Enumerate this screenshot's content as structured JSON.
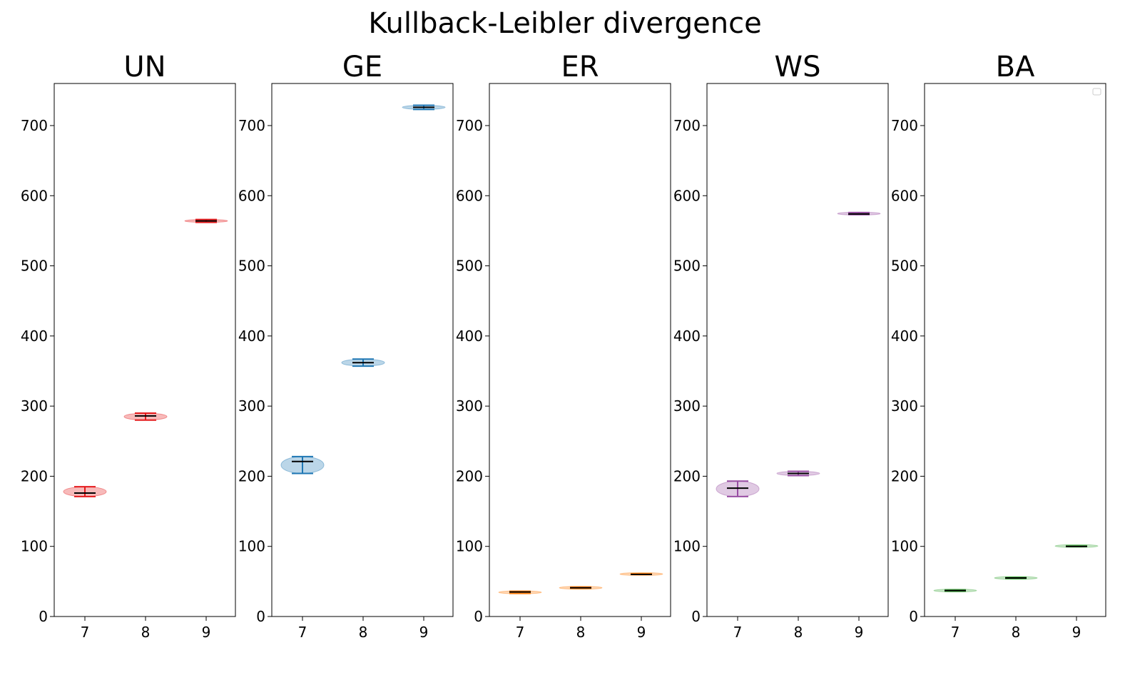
{
  "suptitle": "Kullback-Leibler divergence",
  "chart_data": {
    "type": "violin",
    "ylim": [
      0,
      760
    ],
    "yticks": [
      0,
      100,
      200,
      300,
      400,
      500,
      600,
      700
    ],
    "categories": [
      "7",
      "8",
      "9"
    ],
    "legend": {
      "placement": "upper right",
      "entries": []
    },
    "grid": false,
    "panels": [
      {
        "title": "UN",
        "color": "#e41a1c",
        "violins": [
          {
            "x": "7",
            "min": 171,
            "max": 185,
            "median": 176,
            "spread": 30
          },
          {
            "x": "8",
            "min": 280,
            "max": 290,
            "median": 286,
            "spread": 30
          },
          {
            "x": "9",
            "min": 562,
            "max": 566,
            "median": 564,
            "spread": 30
          }
        ]
      },
      {
        "title": "GE",
        "color": "#1f77b4",
        "violins": [
          {
            "x": "7",
            "min": 204,
            "max": 228,
            "median": 221,
            "spread": 30
          },
          {
            "x": "8",
            "min": 357,
            "max": 367,
            "median": 362,
            "spread": 30
          },
          {
            "x": "9",
            "min": 723,
            "max": 729,
            "median": 726,
            "spread": 30
          }
        ]
      },
      {
        "title": "ER",
        "color": "#ff7f0e",
        "violins": [
          {
            "x": "7",
            "min": 33,
            "max": 36,
            "median": 35,
            "spread": 30
          },
          {
            "x": "8",
            "min": 40,
            "max": 42,
            "median": 41,
            "spread": 30
          },
          {
            "x": "9",
            "min": 60,
            "max": 61,
            "median": 60,
            "spread": 30
          }
        ]
      },
      {
        "title": "WS",
        "color": "#984ea3",
        "violins": [
          {
            "x": "7",
            "min": 171,
            "max": 193,
            "median": 183,
            "spread": 30
          },
          {
            "x": "8",
            "min": 201,
            "max": 207,
            "median": 204,
            "spread": 30
          },
          {
            "x": "9",
            "min": 573,
            "max": 576,
            "median": 574,
            "spread": 30
          }
        ]
      },
      {
        "title": "BA",
        "color": "#4daf4a",
        "violins": [
          {
            "x": "7",
            "min": 36,
            "max": 38,
            "median": 37,
            "spread": 30
          },
          {
            "x": "8",
            "min": 54,
            "max": 56,
            "median": 55,
            "spread": 30
          },
          {
            "x": "9",
            "min": 100,
            "max": 101,
            "median": 100,
            "spread": 30
          }
        ]
      }
    ]
  }
}
